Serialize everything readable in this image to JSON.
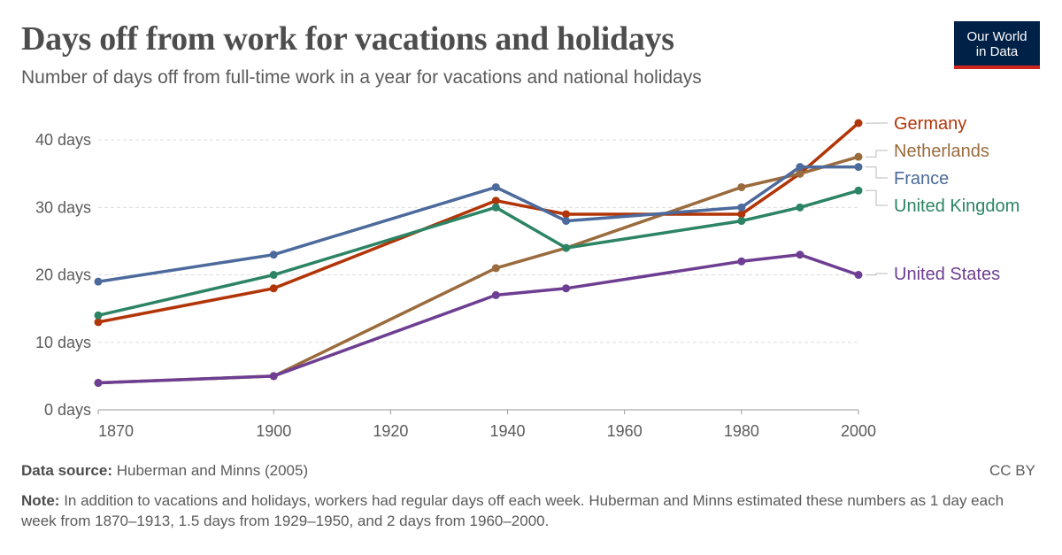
{
  "header": {
    "title": "Days off from work for vacations and holidays",
    "subtitle": "Number of days off from full-time work in a year for vacations and national holidays",
    "logo_line1": "Our World",
    "logo_line2": "in Data"
  },
  "footer": {
    "source_label": "Data source:",
    "source_text": "Huberman and Minns (2005)",
    "license": "CC BY",
    "note_label": "Note:",
    "note_text": "In addition to vacations and holidays, workers had regular days off each week. Huberman and Minns estimated these numbers as 1 day each week from 1870–1913, 1.5 days from 1929–1950, and 2 days from 1960–2000."
  },
  "chart_data": {
    "type": "line",
    "title": "Days off from work for vacations and holidays",
    "subtitle": "Number of days off from full-time work in a year for vacations and national holidays",
    "xlim": [
      1870,
      2000
    ],
    "ylim": [
      0,
      45
    ],
    "x_ticks": [
      1870,
      1900,
      1920,
      1940,
      1960,
      1980,
      2000
    ],
    "y_ticks": [
      0,
      10,
      20,
      30,
      40
    ],
    "y_tick_labels": [
      "0 days",
      "10 days",
      "20 days",
      "30 days",
      "40 days"
    ],
    "grid": "horizontal dashed",
    "legend": "right, labels at line ends",
    "series": [
      {
        "name": "Germany",
        "color": "#b13507",
        "points": [
          [
            1870,
            13
          ],
          [
            1900,
            18
          ],
          [
            1938,
            31
          ],
          [
            1950,
            29
          ],
          [
            1980,
            29
          ],
          [
            1990,
            35
          ],
          [
            2000,
            42.5
          ]
        ]
      },
      {
        "name": "Netherlands",
        "color": "#9a6b3d",
        "points": [
          [
            1870,
            4
          ],
          [
            1900,
            5
          ],
          [
            1938,
            21
          ],
          [
            1950,
            24
          ],
          [
            1980,
            33
          ],
          [
            1990,
            35
          ],
          [
            2000,
            37.5
          ]
        ]
      },
      {
        "name": "France",
        "color": "#4c6a9c",
        "points": [
          [
            1870,
            19
          ],
          [
            1900,
            23
          ],
          [
            1938,
            33
          ],
          [
            1950,
            28
          ],
          [
            1980,
            30
          ],
          [
            1990,
            36
          ],
          [
            2000,
            36
          ]
        ]
      },
      {
        "name": "United Kingdom",
        "color": "#2c8465",
        "points": [
          [
            1870,
            14
          ],
          [
            1900,
            20
          ],
          [
            1938,
            30
          ],
          [
            1950,
            24
          ],
          [
            1980,
            28
          ],
          [
            1990,
            30
          ],
          [
            2000,
            32.5
          ]
        ]
      },
      {
        "name": "United States",
        "color": "#6d3e91",
        "points": [
          [
            1870,
            4
          ],
          [
            1900,
            5
          ],
          [
            1938,
            17
          ],
          [
            1950,
            18
          ],
          [
            1980,
            22
          ],
          [
            1990,
            23
          ],
          [
            2000,
            20
          ]
        ]
      }
    ]
  }
}
